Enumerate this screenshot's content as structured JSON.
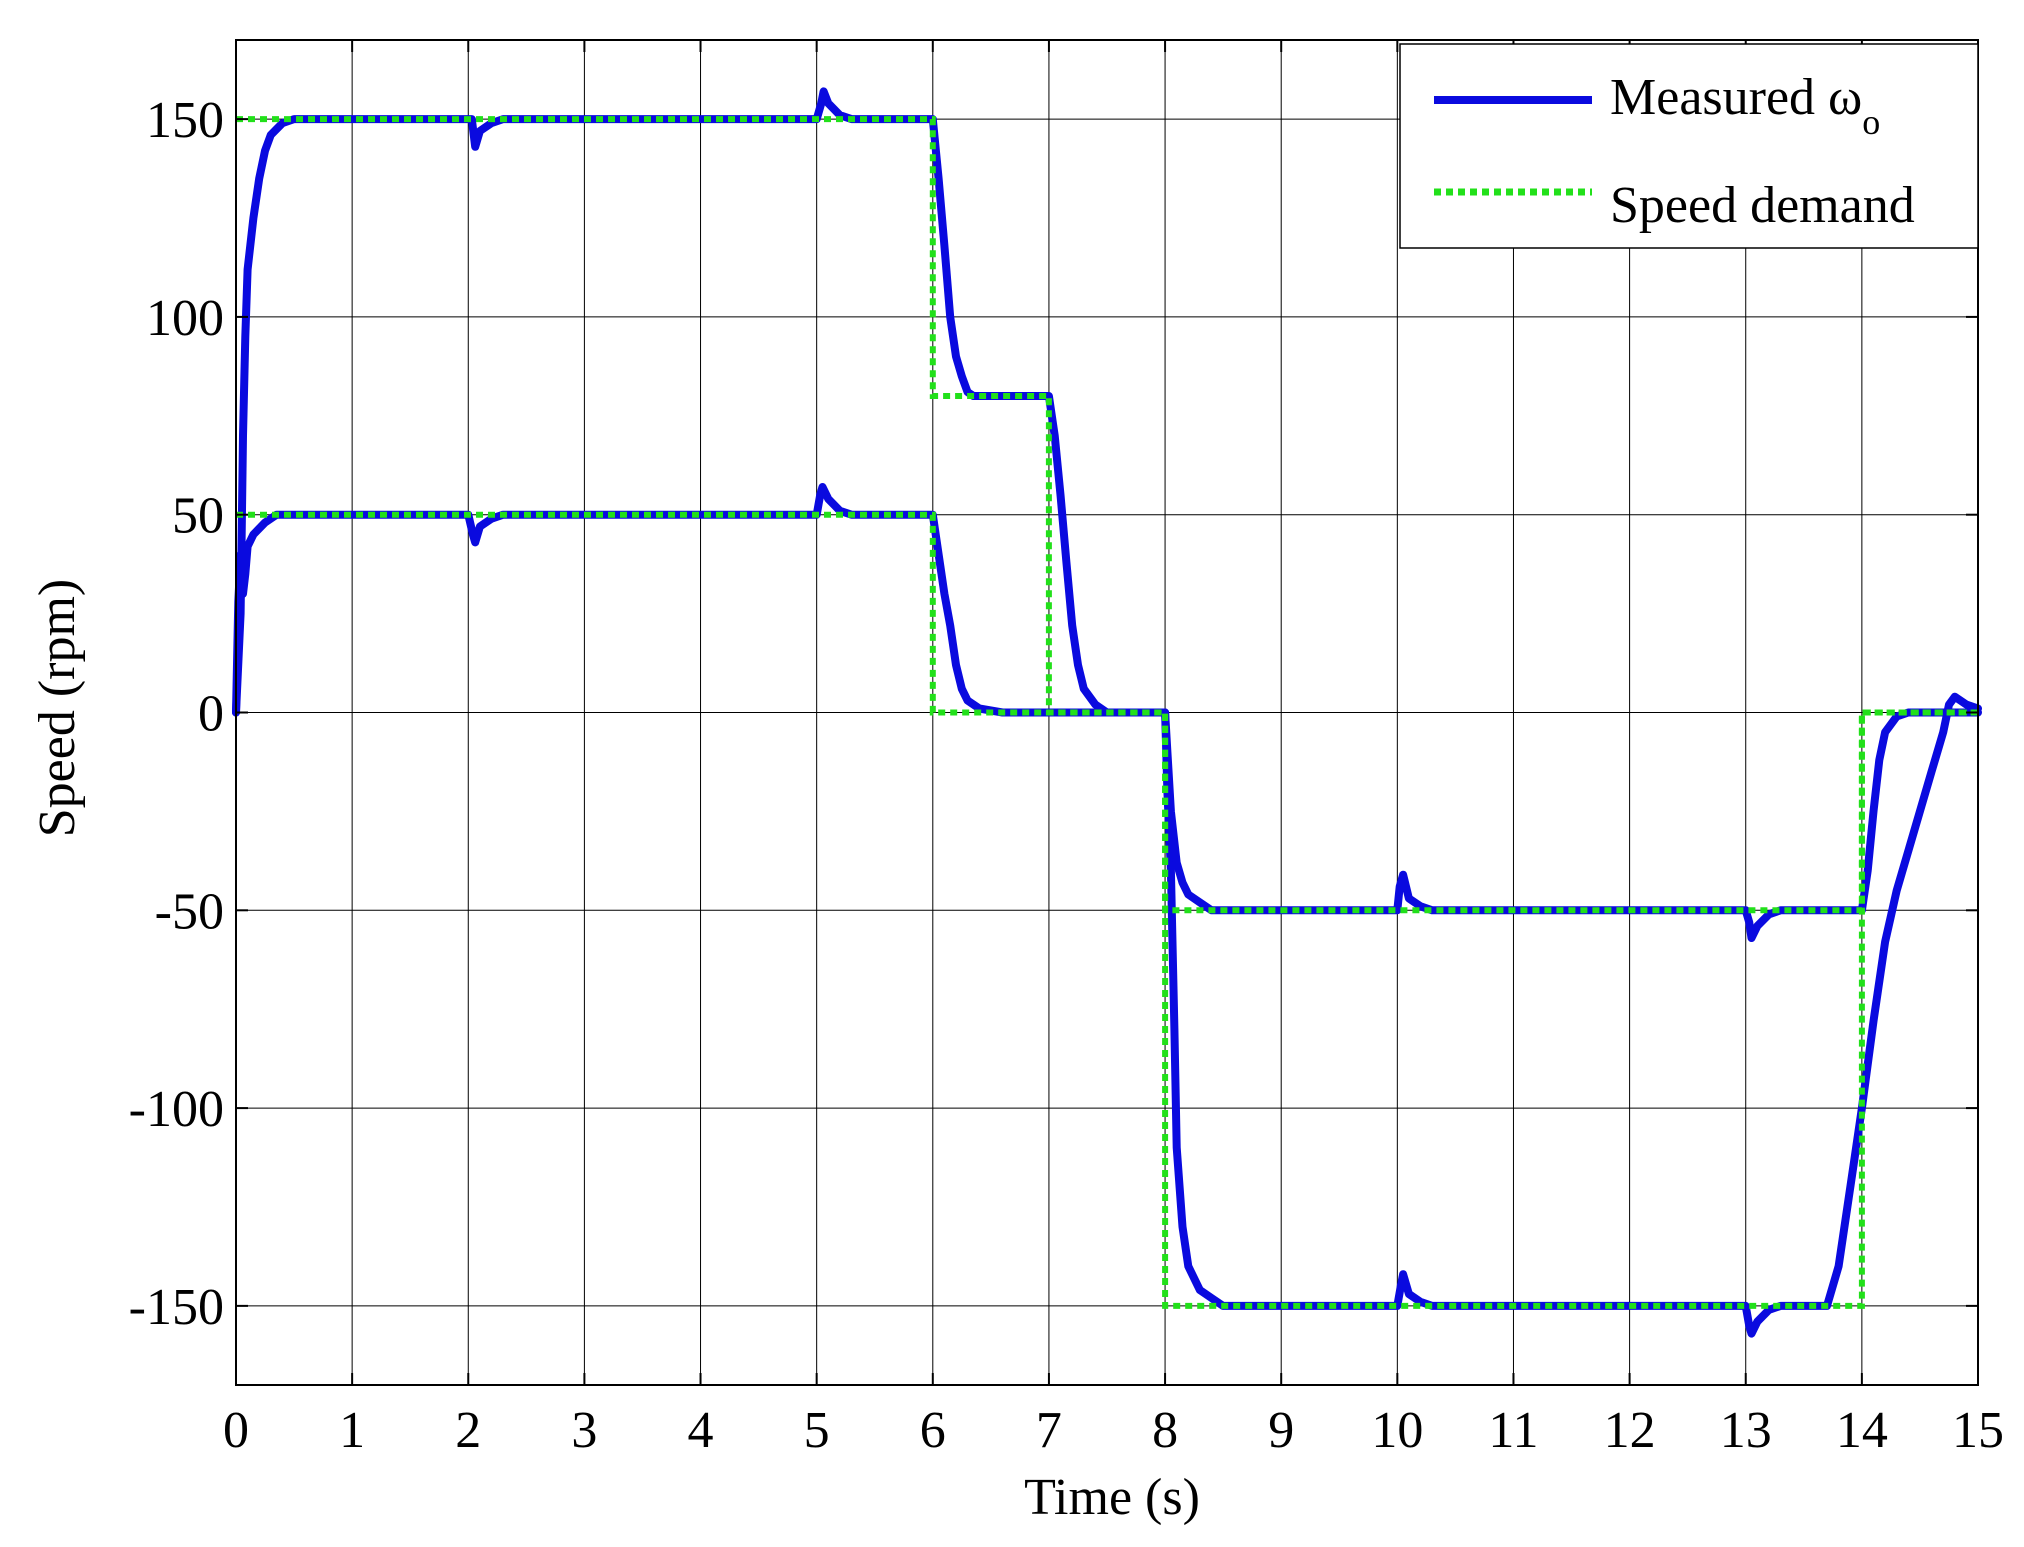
{
  "chart_data": {
    "type": "line",
    "title": "",
    "xlabel": "Time (s)",
    "ylabel": "Speed (rpm)",
    "xlim": [
      0,
      15
    ],
    "ylim": [
      -170,
      170
    ],
    "xticks": [
      0,
      1,
      2,
      3,
      4,
      5,
      6,
      7,
      8,
      9,
      10,
      11,
      12,
      13,
      14,
      15
    ],
    "yticks": [
      -150,
      -100,
      -50,
      0,
      50,
      100,
      150
    ],
    "grid": true,
    "legend_position": "top-right",
    "legend": [
      {
        "label": "Measured ω",
        "subscript": "o",
        "style": "solid",
        "color": "#0a0adf"
      },
      {
        "label": "Speed demand",
        "subscript": "",
        "style": "dotted",
        "color": "#22e01a"
      }
    ],
    "series": [
      {
        "name": "Measured ωo (run 1)",
        "style": "measured",
        "color": "#0a0adf",
        "points": [
          [
            0,
            0
          ],
          [
            0.04,
            25
          ],
          [
            0.06,
            70
          ],
          [
            0.08,
            95
          ],
          [
            0.1,
            112
          ],
          [
            0.15,
            125
          ],
          [
            0.2,
            135
          ],
          [
            0.25,
            142
          ],
          [
            0.3,
            146
          ],
          [
            0.4,
            149
          ],
          [
            0.5,
            150
          ],
          [
            1,
            150
          ],
          [
            2,
            150
          ],
          [
            2.03,
            150
          ],
          [
            2.06,
            143
          ],
          [
            2.1,
            147
          ],
          [
            2.2,
            149
          ],
          [
            2.3,
            150
          ],
          [
            5,
            150
          ],
          [
            5.04,
            154
          ],
          [
            5.06,
            157
          ],
          [
            5.1,
            154
          ],
          [
            5.2,
            151
          ],
          [
            5.3,
            150
          ],
          [
            6,
            150
          ],
          [
            6.05,
            135
          ],
          [
            6.1,
            118
          ],
          [
            6.15,
            100
          ],
          [
            6.2,
            90
          ],
          [
            6.25,
            85
          ],
          [
            6.3,
            81
          ],
          [
            6.35,
            80
          ],
          [
            7,
            80
          ],
          [
            7.05,
            70
          ],
          [
            7.1,
            55
          ],
          [
            7.15,
            38
          ],
          [
            7.2,
            22
          ],
          [
            7.25,
            12
          ],
          [
            7.3,
            6
          ],
          [
            7.4,
            2
          ],
          [
            7.5,
            0
          ],
          [
            8,
            0
          ],
          [
            8.02,
            -20
          ],
          [
            8.05,
            -40
          ],
          [
            8.08,
            -80
          ],
          [
            8.1,
            -110
          ],
          [
            8.15,
            -130
          ],
          [
            8.2,
            -140
          ],
          [
            8.3,
            -146
          ],
          [
            8.4,
            -148
          ],
          [
            8.5,
            -150
          ],
          [
            10,
            -150
          ],
          [
            10.03,
            -145
          ],
          [
            10.05,
            -142
          ],
          [
            10.1,
            -147
          ],
          [
            10.2,
            -149
          ],
          [
            10.3,
            -150
          ],
          [
            13,
            -150
          ],
          [
            13.03,
            -155
          ],
          [
            13.05,
            -157
          ],
          [
            13.1,
            -154
          ],
          [
            13.2,
            -151
          ],
          [
            13.3,
            -150
          ],
          [
            13.7,
            -150
          ],
          [
            13.8,
            -140
          ],
          [
            13.9,
            -120
          ],
          [
            14,
            -100
          ],
          [
            14.1,
            -78
          ],
          [
            14.2,
            -58
          ],
          [
            14.3,
            -45
          ],
          [
            14.4,
            -35
          ],
          [
            14.5,
            -25
          ],
          [
            14.6,
            -15
          ],
          [
            14.7,
            -5
          ],
          [
            14.75,
            2
          ],
          [
            14.8,
            4
          ],
          [
            14.9,
            2
          ],
          [
            15,
            1
          ]
        ]
      },
      {
        "name": "Measured ωo (run 2)",
        "style": "measured",
        "color": "#0a0adf",
        "points": [
          [
            0,
            0
          ],
          [
            0.02,
            28
          ],
          [
            0.04,
            40
          ],
          [
            0.06,
            30
          ],
          [
            0.08,
            35
          ],
          [
            0.1,
            42
          ],
          [
            0.15,
            45
          ],
          [
            0.25,
            48
          ],
          [
            0.35,
            50
          ],
          [
            2,
            50
          ],
          [
            2.04,
            45
          ],
          [
            2.06,
            43
          ],
          [
            2.1,
            47
          ],
          [
            2.2,
            49
          ],
          [
            2.3,
            50
          ],
          [
            5,
            50
          ],
          [
            5.03,
            55
          ],
          [
            5.05,
            57
          ],
          [
            5.1,
            54
          ],
          [
            5.2,
            51
          ],
          [
            5.3,
            50
          ],
          [
            6,
            50
          ],
          [
            6.05,
            40
          ],
          [
            6.1,
            30
          ],
          [
            6.15,
            22
          ],
          [
            6.2,
            12
          ],
          [
            6.25,
            6
          ],
          [
            6.3,
            3
          ],
          [
            6.4,
            1
          ],
          [
            6.6,
            0
          ],
          [
            8,
            0
          ],
          [
            8.02,
            -10
          ],
          [
            8.05,
            -25
          ],
          [
            8.1,
            -38
          ],
          [
            8.15,
            -43
          ],
          [
            8.2,
            -46
          ],
          [
            8.3,
            -48
          ],
          [
            8.4,
            -50
          ],
          [
            10,
            -50
          ],
          [
            10.02,
            -44
          ],
          [
            10.05,
            -41
          ],
          [
            10.1,
            -47
          ],
          [
            10.2,
            -49
          ],
          [
            10.3,
            -50
          ],
          [
            13,
            -50
          ],
          [
            13.03,
            -53
          ],
          [
            13.05,
            -57
          ],
          [
            13.1,
            -54
          ],
          [
            13.2,
            -51
          ],
          [
            13.3,
            -50
          ],
          [
            14,
            -50
          ],
          [
            14.05,
            -40
          ],
          [
            14.1,
            -25
          ],
          [
            14.15,
            -12
          ],
          [
            14.2,
            -5
          ],
          [
            14.3,
            -1
          ],
          [
            14.4,
            0
          ],
          [
            15,
            0
          ]
        ]
      },
      {
        "name": "Speed demand (run 1)",
        "style": "demand",
        "color": "#22e01a",
        "points": [
          [
            0,
            150
          ],
          [
            6,
            150
          ],
          [
            6,
            80
          ],
          [
            7,
            80
          ],
          [
            7,
            0
          ],
          [
            8,
            0
          ],
          [
            8,
            -150
          ],
          [
            14,
            -150
          ],
          [
            14,
            0
          ],
          [
            15,
            0
          ]
        ]
      },
      {
        "name": "Speed demand (run 2)",
        "style": "demand",
        "color": "#22e01a",
        "points": [
          [
            0,
            50
          ],
          [
            6,
            50
          ],
          [
            6,
            0
          ],
          [
            8,
            0
          ],
          [
            8,
            -50
          ],
          [
            14,
            -50
          ],
          [
            14,
            0
          ],
          [
            15,
            0
          ]
        ]
      }
    ]
  }
}
